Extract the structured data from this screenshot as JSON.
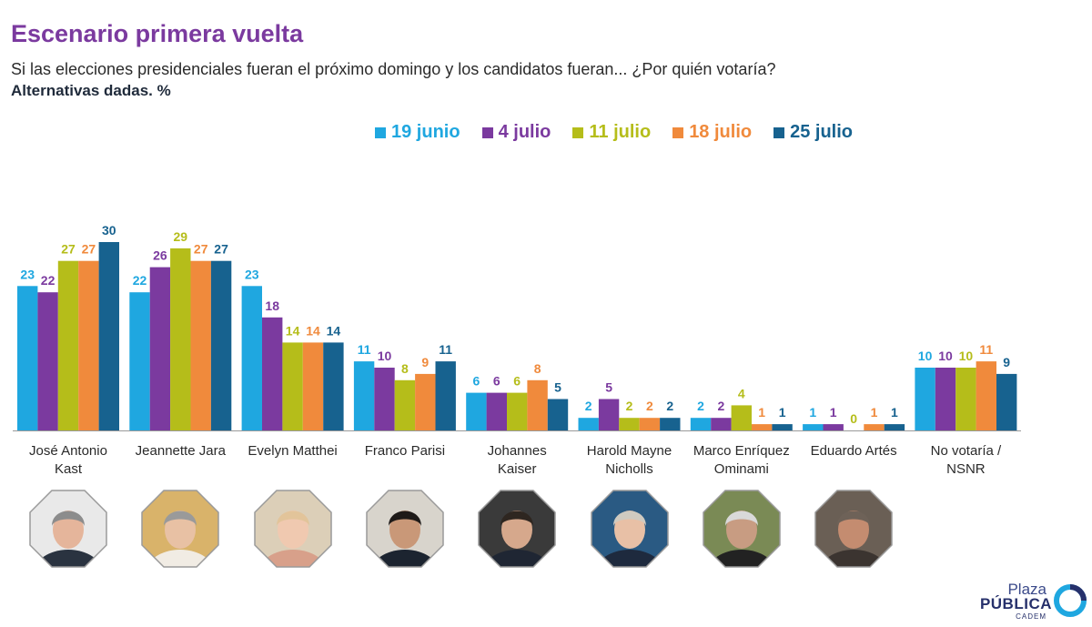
{
  "header": {
    "title": "Escenario primera vuelta",
    "subtitle": "Si las elecciones presidenciales fueran el próximo domingo y los candidatos fueran... ¿Por quién votaría?",
    "note": "Alternativas dadas. %"
  },
  "chart_data": {
    "type": "bar",
    "title": "Escenario primera vuelta",
    "categories": [
      [
        "José Antonio",
        "Kast"
      ],
      [
        "Jeannette Jara"
      ],
      [
        "Evelyn Matthei"
      ],
      [
        "Franco Parisi"
      ],
      [
        "Johannes",
        "Kaiser"
      ],
      [
        "Harold Mayne",
        "Nicholls"
      ],
      [
        "Marco Enríquez",
        "Ominami"
      ],
      [
        "Eduardo Artés"
      ],
      [
        "No votaría /",
        "NSNR"
      ]
    ],
    "series": [
      {
        "name": "19 junio",
        "color": "#1fa7e0",
        "values": [
          23,
          22,
          23,
          11,
          6,
          2,
          2,
          1,
          10
        ]
      },
      {
        "name": "4 julio",
        "color": "#7b3a9f",
        "values": [
          22,
          26,
          18,
          10,
          6,
          5,
          2,
          1,
          10
        ]
      },
      {
        "name": "11 julio",
        "color": "#b5bd1a",
        "values": [
          27,
          29,
          14,
          8,
          6,
          2,
          4,
          0,
          10
        ]
      },
      {
        "name": "18 julio",
        "color": "#f08a3c",
        "values": [
          27,
          27,
          14,
          9,
          8,
          2,
          1,
          1,
          11
        ]
      },
      {
        "name": "25 julio",
        "color": "#17628f",
        "values": [
          30,
          27,
          14,
          11,
          5,
          2,
          1,
          1,
          9
        ]
      }
    ],
    "ylim": [
      0,
      30
    ],
    "xlabel": "",
    "ylabel": "",
    "grid": false,
    "legend_position": "top"
  },
  "candidate_photos": [
    {
      "name": "José Antonio Kast",
      "bg": "#e9e9e9",
      "skin": "#e5b59b",
      "hair": "#8c8c8c",
      "shirt": "#2a3340"
    },
    {
      "name": "Jeannette Jara",
      "bg": "#d9b36a",
      "skin": "#e8c1a4",
      "hair": "#9a9a9a",
      "shirt": "#f1ece4"
    },
    {
      "name": "Evelyn Matthei",
      "bg": "#dccfb8",
      "skin": "#f0c9b0",
      "hair": "#e2c49a",
      "shirt": "#d8a08a"
    },
    {
      "name": "Franco Parisi",
      "bg": "#d8d4cc",
      "skin": "#c99878",
      "hair": "#1e1a18",
      "shirt": "#1c2430"
    },
    {
      "name": "Johannes Kaiser",
      "bg": "#3a3a3a",
      "skin": "#d6a88c",
      "hair": "#2e2620",
      "shirt": "#1f2633"
    },
    {
      "name": "Harold Mayne Nicholls",
      "bg": "#2a5a83",
      "skin": "#e8c0a6",
      "hair": "#cfcac0",
      "shirt": "#1e2a3e"
    },
    {
      "name": "Marco Enríquez Ominami",
      "bg": "#7a8a55",
      "skin": "#c89c82",
      "hair": "#d9d9d9",
      "shirt": "#222222"
    },
    {
      "name": "Eduardo Artés",
      "bg": "#6a5f55",
      "skin": "#c48c70",
      "hair": "#6e6258",
      "shirt": "#3b3430"
    }
  ],
  "logo": {
    "line1": "Plaza",
    "line2": "PÚBLICA",
    "line3": "CADEM"
  }
}
